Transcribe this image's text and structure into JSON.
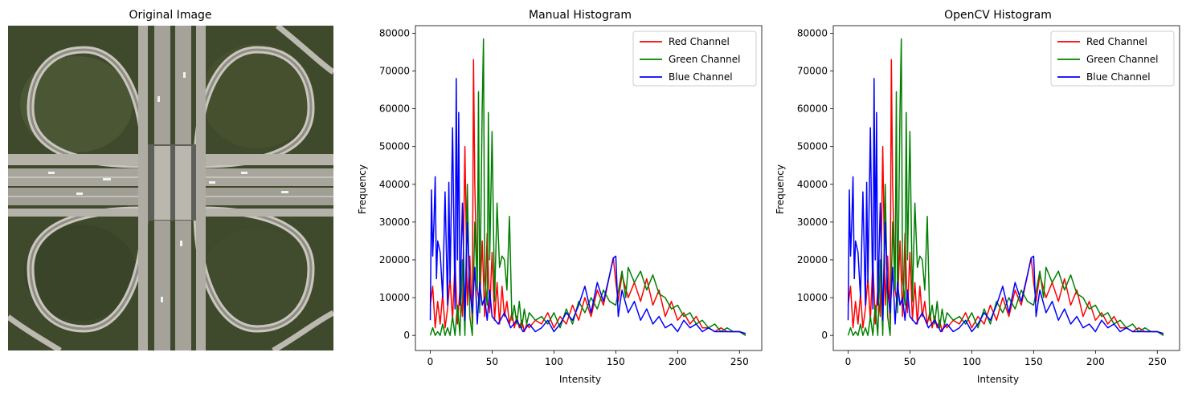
{
  "image_panel": {
    "title": "Original Image",
    "image": {
      "content": "aerial view of a cloverleaf highway interchange",
      "colors": {
        "grass": "#3f4a2c",
        "road": "#9a9a92",
        "road_edge": "#d8d6cc"
      }
    }
  },
  "legend_labels": [
    "Red Channel",
    "Green Channel",
    "Blue Channel"
  ],
  "chart_data": [
    {
      "type": "line",
      "title": "Manual Histogram",
      "xlabel": "Intensity",
      "ylabel": "Frequency",
      "xlim": [
        -12,
        268
      ],
      "ylim": [
        -4000,
        82000
      ],
      "xticks": [
        0,
        50,
        100,
        150,
        200,
        250
      ],
      "yticks": [
        0,
        10000,
        20000,
        30000,
        40000,
        50000,
        60000,
        70000,
        80000
      ],
      "grid": false,
      "legend": "top-right",
      "series": [
        {
          "name": "Red Channel",
          "color": "#ff0000",
          "x": [
            0,
            2,
            4,
            6,
            8,
            10,
            12,
            14,
            16,
            18,
            20,
            22,
            24,
            26,
            28,
            30,
            32,
            34,
            35,
            36,
            38,
            40,
            42,
            44,
            46,
            48,
            50,
            52,
            54,
            56,
            58,
            60,
            62,
            64,
            66,
            68,
            70,
            72,
            74,
            76,
            78,
            80,
            85,
            90,
            95,
            100,
            105,
            110,
            115,
            120,
            125,
            130,
            135,
            140,
            145,
            148,
            150,
            152,
            155,
            160,
            165,
            170,
            175,
            180,
            185,
            190,
            195,
            200,
            205,
            210,
            215,
            220,
            225,
            230,
            235,
            240,
            245,
            250,
            255
          ],
          "y": [
            8000,
            13000,
            2000,
            9000,
            3000,
            11000,
            2000,
            7000,
            15000,
            4000,
            20000,
            3000,
            12000,
            5000,
            50000,
            8000,
            21000,
            3000,
            73000,
            40000,
            12000,
            8000,
            25000,
            5000,
            27000,
            6000,
            22000,
            4000,
            14000,
            3000,
            13000,
            5000,
            9000,
            3000,
            6000,
            2000,
            5000,
            2000,
            4000,
            1000,
            3000,
            2000,
            4000,
            3000,
            6000,
            2000,
            5000,
            3000,
            8000,
            4000,
            10000,
            5000,
            12000,
            8000,
            16000,
            20500,
            14000,
            9000,
            16000,
            10000,
            14000,
            9000,
            15000,
            8000,
            12000,
            5000,
            9000,
            4000,
            6000,
            3000,
            5000,
            2000,
            2000,
            1000,
            2000,
            1000,
            1000,
            1000,
            0
          ]
        },
        {
          "name": "Green Channel",
          "color": "#008000",
          "x": [
            0,
            2,
            4,
            6,
            8,
            10,
            12,
            14,
            16,
            18,
            20,
            22,
            24,
            26,
            28,
            30,
            32,
            34,
            36,
            38,
            39,
            40,
            42,
            43,
            44,
            46,
            47,
            48,
            50,
            52,
            54,
            56,
            58,
            60,
            62,
            64,
            66,
            68,
            70,
            72,
            74,
            76,
            78,
            80,
            85,
            90,
            95,
            100,
            105,
            110,
            115,
            120,
            125,
            130,
            135,
            140,
            145,
            150,
            155,
            158,
            160,
            165,
            170,
            175,
            180,
            185,
            190,
            195,
            200,
            205,
            210,
            215,
            220,
            225,
            230,
            235,
            240,
            245,
            250,
            255
          ],
          "y": [
            0,
            2000,
            0,
            1000,
            0,
            3000,
            0,
            2000,
            0,
            5000,
            0,
            8000,
            0,
            20000,
            0,
            40000,
            5000,
            0,
            30000,
            12000,
            64500,
            6000,
            60000,
            78500,
            15000,
            8000,
            59000,
            20000,
            54000,
            9000,
            35000,
            18000,
            21000,
            20000,
            12000,
            31500,
            4000,
            8000,
            3000,
            9000,
            2000,
            7000,
            3000,
            6000,
            4000,
            5000,
            3000,
            6000,
            2000,
            7000,
            3000,
            9000,
            6000,
            10000,
            7000,
            12000,
            9000,
            8000,
            17000,
            10000,
            18000,
            14000,
            17000,
            12000,
            16000,
            11000,
            10000,
            7000,
            8000,
            5000,
            6000,
            3000,
            4000,
            2000,
            3000,
            1000,
            2000,
            1000,
            1000,
            0
          ]
        },
        {
          "name": "Blue Channel",
          "color": "#0000ff",
          "x": [
            0,
            1,
            2,
            3,
            4,
            5,
            6,
            8,
            10,
            12,
            14,
            15,
            16,
            18,
            20,
            21,
            22,
            23,
            24,
            26,
            28,
            30,
            32,
            34,
            36,
            38,
            40,
            42,
            44,
            46,
            48,
            50,
            55,
            60,
            65,
            70,
            75,
            80,
            85,
            90,
            95,
            100,
            105,
            110,
            115,
            120,
            125,
            130,
            135,
            140,
            145,
            148,
            150,
            152,
            155,
            160,
            165,
            170,
            175,
            180,
            185,
            190,
            195,
            200,
            205,
            210,
            215,
            220,
            225,
            230,
            235,
            240,
            245,
            250,
            255
          ],
          "y": [
            4000,
            38500,
            21000,
            30000,
            42000,
            15000,
            25000,
            22000,
            10000,
            38000,
            8000,
            40500,
            14000,
            55000,
            7000,
            68000,
            20000,
            59000,
            8000,
            35000,
            4000,
            30000,
            12000,
            6000,
            18000,
            3000,
            14000,
            8000,
            10000,
            4000,
            12000,
            5000,
            3000,
            6000,
            2000,
            4000,
            1000,
            3000,
            1000,
            2000,
            4000,
            1000,
            3000,
            6000,
            4000,
            8000,
            13000,
            6000,
            14000,
            9000,
            16000,
            20500,
            21000,
            5000,
            12000,
            6000,
            9000,
            4000,
            7000,
            3000,
            5000,
            2000,
            3000,
            1000,
            4000,
            2000,
            3000,
            1000,
            2000,
            1000,
            1000,
            1000,
            1000,
            1000,
            500
          ]
        }
      ]
    },
    {
      "type": "line",
      "title": "OpenCV Histogram",
      "xlabel": "Intensity",
      "ylabel": "Frequency",
      "xlim": [
        -12,
        268
      ],
      "ylim": [
        -4000,
        82000
      ],
      "xticks": [
        0,
        50,
        100,
        150,
        200,
        250
      ],
      "yticks": [
        0,
        10000,
        20000,
        30000,
        40000,
        50000,
        60000,
        70000,
        80000
      ],
      "grid": false,
      "legend": "top-right",
      "series": [
        {
          "name": "Red Channel",
          "color": "#ff0000",
          "x": [
            0,
            2,
            4,
            6,
            8,
            10,
            12,
            14,
            16,
            18,
            20,
            22,
            24,
            26,
            28,
            30,
            32,
            34,
            35,
            36,
            38,
            40,
            42,
            44,
            46,
            48,
            50,
            52,
            54,
            56,
            58,
            60,
            62,
            64,
            66,
            68,
            70,
            72,
            74,
            76,
            78,
            80,
            85,
            90,
            95,
            100,
            105,
            110,
            115,
            120,
            125,
            130,
            135,
            140,
            145,
            148,
            150,
            152,
            155,
            160,
            165,
            170,
            175,
            180,
            185,
            190,
            195,
            200,
            205,
            210,
            215,
            220,
            225,
            230,
            235,
            240,
            245,
            250,
            255
          ],
          "y": [
            8000,
            13000,
            2000,
            9000,
            3000,
            11000,
            2000,
            7000,
            15000,
            4000,
            20000,
            3000,
            12000,
            5000,
            50000,
            8000,
            21000,
            3000,
            73000,
            40000,
            12000,
            8000,
            25000,
            5000,
            27000,
            6000,
            22000,
            4000,
            14000,
            3000,
            13000,
            5000,
            9000,
            3000,
            6000,
            2000,
            5000,
            2000,
            4000,
            1000,
            3000,
            2000,
            4000,
            3000,
            6000,
            2000,
            5000,
            3000,
            8000,
            4000,
            10000,
            5000,
            12000,
            8000,
            16000,
            20500,
            14000,
            9000,
            16000,
            10000,
            14000,
            9000,
            15000,
            8000,
            12000,
            5000,
            9000,
            4000,
            6000,
            3000,
            5000,
            2000,
            2000,
            1000,
            2000,
            1000,
            1000,
            1000,
            0
          ]
        },
        {
          "name": "Green Channel",
          "color": "#008000",
          "x": [
            0,
            2,
            4,
            6,
            8,
            10,
            12,
            14,
            16,
            18,
            20,
            22,
            24,
            26,
            28,
            30,
            32,
            34,
            36,
            38,
            39,
            40,
            42,
            43,
            44,
            46,
            47,
            48,
            50,
            52,
            54,
            56,
            58,
            60,
            62,
            64,
            66,
            68,
            70,
            72,
            74,
            76,
            78,
            80,
            85,
            90,
            95,
            100,
            105,
            110,
            115,
            120,
            125,
            130,
            135,
            140,
            145,
            150,
            155,
            158,
            160,
            165,
            170,
            175,
            180,
            185,
            190,
            195,
            200,
            205,
            210,
            215,
            220,
            225,
            230,
            235,
            240,
            245,
            250,
            255
          ],
          "y": [
            0,
            2000,
            0,
            1000,
            0,
            3000,
            0,
            2000,
            0,
            5000,
            0,
            8000,
            0,
            20000,
            0,
            40000,
            5000,
            0,
            30000,
            12000,
            64500,
            6000,
            60000,
            78500,
            15000,
            8000,
            59000,
            20000,
            54000,
            9000,
            35000,
            18000,
            21000,
            20000,
            12000,
            31500,
            4000,
            8000,
            3000,
            9000,
            2000,
            7000,
            3000,
            6000,
            4000,
            5000,
            3000,
            6000,
            2000,
            7000,
            3000,
            9000,
            6000,
            10000,
            7000,
            12000,
            9000,
            8000,
            17000,
            10000,
            18000,
            14000,
            17000,
            12000,
            16000,
            11000,
            10000,
            7000,
            8000,
            5000,
            6000,
            3000,
            4000,
            2000,
            3000,
            1000,
            2000,
            1000,
            1000,
            0
          ]
        },
        {
          "name": "Blue Channel",
          "color": "#0000ff",
          "x": [
            0,
            1,
            2,
            3,
            4,
            5,
            6,
            8,
            10,
            12,
            14,
            15,
            16,
            18,
            20,
            21,
            22,
            23,
            24,
            26,
            28,
            30,
            32,
            34,
            36,
            38,
            40,
            42,
            44,
            46,
            48,
            50,
            55,
            60,
            65,
            70,
            75,
            80,
            85,
            90,
            95,
            100,
            105,
            110,
            115,
            120,
            125,
            130,
            135,
            140,
            145,
            148,
            150,
            152,
            155,
            160,
            165,
            170,
            175,
            180,
            185,
            190,
            195,
            200,
            205,
            210,
            215,
            220,
            225,
            230,
            235,
            240,
            245,
            250,
            255
          ],
          "y": [
            4000,
            38500,
            21000,
            30000,
            42000,
            15000,
            25000,
            22000,
            10000,
            38000,
            8000,
            40500,
            14000,
            55000,
            7000,
            68000,
            20000,
            59000,
            8000,
            35000,
            4000,
            30000,
            12000,
            6000,
            18000,
            3000,
            14000,
            8000,
            10000,
            4000,
            12000,
            5000,
            3000,
            6000,
            2000,
            4000,
            1000,
            3000,
            1000,
            2000,
            4000,
            1000,
            3000,
            6000,
            4000,
            8000,
            13000,
            6000,
            14000,
            9000,
            16000,
            20500,
            21000,
            5000,
            12000,
            6000,
            9000,
            4000,
            7000,
            3000,
            5000,
            2000,
            3000,
            1000,
            4000,
            2000,
            3000,
            1000,
            2000,
            1000,
            1000,
            1000,
            1000,
            1000,
            500
          ]
        }
      ]
    }
  ]
}
